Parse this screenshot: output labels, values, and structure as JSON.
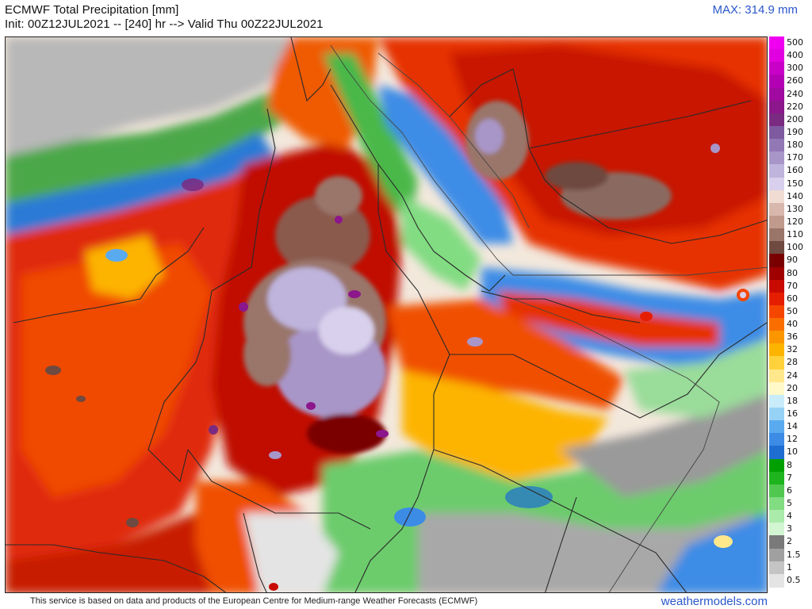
{
  "header": {
    "title": "ECMWF Total Precipitation [mm]",
    "subtitle": "Init: 00Z12JUL2021 -- [240] hr --> Valid Thu 00Z22JUL2021",
    "max_label": "MAX: 314.9 mm"
  },
  "legend": {
    "items": [
      {
        "label": "500",
        "color": "#f000f0"
      },
      {
        "label": "400",
        "color": "#e000e0"
      },
      {
        "label": "300",
        "color": "#c800c8"
      },
      {
        "label": "260",
        "color": "#b400b4"
      },
      {
        "label": "240",
        "color": "#a00aa0"
      },
      {
        "label": "220",
        "color": "#8c168c"
      },
      {
        "label": "200",
        "color": "#7a2a80"
      },
      {
        "label": "190",
        "color": "#7e5aa0"
      },
      {
        "label": "180",
        "color": "#9278b4"
      },
      {
        "label": "170",
        "color": "#a896c8"
      },
      {
        "label": "160",
        "color": "#beb4dc"
      },
      {
        "label": "150",
        "color": "#d8d0ec"
      },
      {
        "label": "140",
        "color": "#f0dcd2"
      },
      {
        "label": "130",
        "color": "#d8b8ac"
      },
      {
        "label": "120",
        "color": "#c09a8c"
      },
      {
        "label": "110",
        "color": "#9a766a"
      },
      {
        "label": "100",
        "color": "#6e4a40"
      },
      {
        "label": "90",
        "color": "#7a0000"
      },
      {
        "label": "80",
        "color": "#a00000"
      },
      {
        "label": "70",
        "color": "#c80a00"
      },
      {
        "label": "60",
        "color": "#e61e00"
      },
      {
        "label": "50",
        "color": "#f54600"
      },
      {
        "label": "40",
        "color": "#fa6e00"
      },
      {
        "label": "36",
        "color": "#fc9600"
      },
      {
        "label": "32",
        "color": "#fdb400"
      },
      {
        "label": "28",
        "color": "#ffd23c"
      },
      {
        "label": "24",
        "color": "#ffe88c"
      },
      {
        "label": "20",
        "color": "#fff8c8"
      },
      {
        "label": "18",
        "color": "#c8ecfa"
      },
      {
        "label": "16",
        "color": "#96d2f5"
      },
      {
        "label": "14",
        "color": "#5aaaf0"
      },
      {
        "label": "12",
        "color": "#3c8ce6"
      },
      {
        "label": "10",
        "color": "#1e6ed2"
      },
      {
        "label": "8",
        "color": "#00a000"
      },
      {
        "label": "7",
        "color": "#1eb41e"
      },
      {
        "label": "6",
        "color": "#50c850"
      },
      {
        "label": "5",
        "color": "#82dc82"
      },
      {
        "label": "4",
        "color": "#aaeaaa"
      },
      {
        "label": "3",
        "color": "#d2f5d2"
      },
      {
        "label": "2",
        "color": "#7a7a7a"
      },
      {
        "label": "1.5",
        "color": "#a0a0a0"
      },
      {
        "label": "1",
        "color": "#c4c4c4"
      },
      {
        "label": "0.5",
        "color": "#e4e4e4"
      }
    ]
  },
  "footer": {
    "attribution": "This service is based on data and products of the European Centre for Medium-range Weather Forecasts (ECMWF)",
    "site": "weathermodels.com"
  }
}
